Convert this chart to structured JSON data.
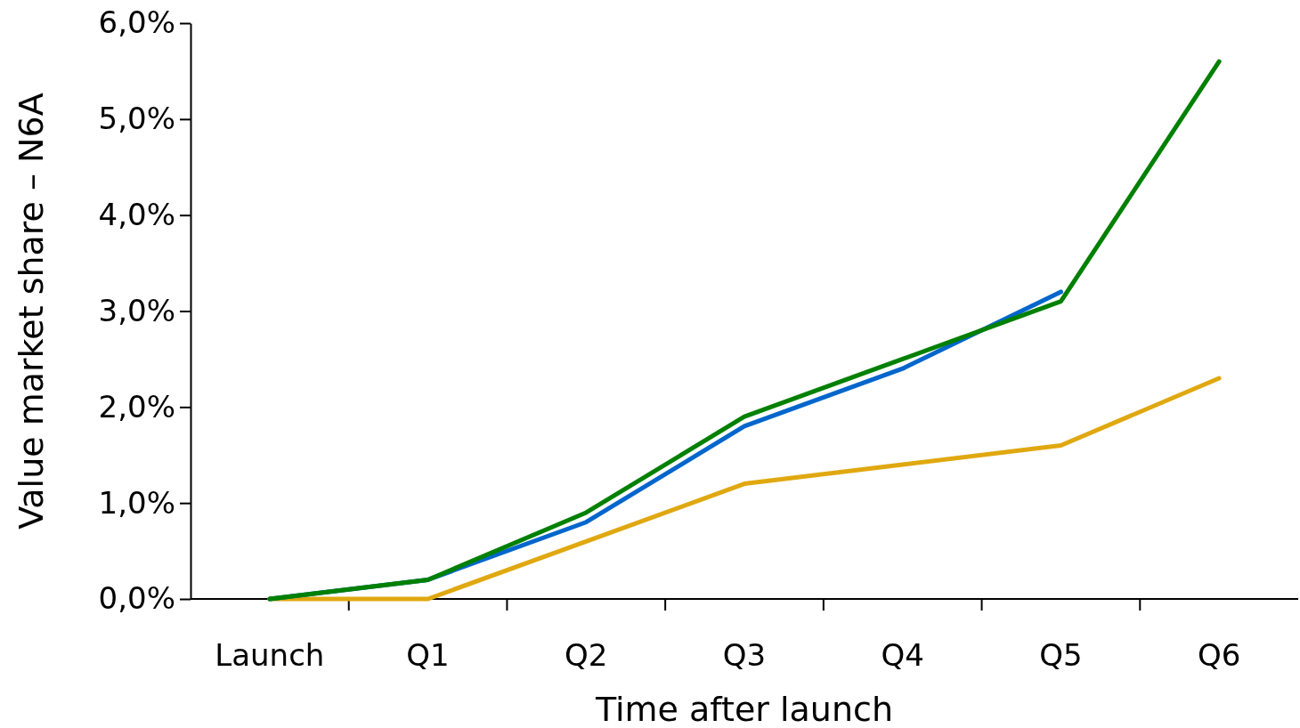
{
  "chart_data": {
    "type": "line",
    "xlabel": "Time after launch",
    "ylabel": "Value market share – N6A",
    "categories": [
      "Launch",
      "Q1",
      "Q2",
      "Q3",
      "Q4",
      "Q5",
      "Q6"
    ],
    "series": [
      {
        "color": "#e0a810",
        "values": [
          0,
          0,
          0.6,
          1.2,
          1.4,
          1.6,
          2.3
        ]
      },
      {
        "color": "#0066cc",
        "values": [
          0,
          0.2,
          0.8,
          1.8,
          2.4,
          3.2,
          null
        ]
      },
      {
        "color": "#008000",
        "values": [
          0,
          0.2,
          0.9,
          1.9,
          2.5,
          3.1,
          5.6
        ]
      }
    ],
    "ylim": [
      0,
      6
    ],
    "yticks": [
      {
        "value": 0,
        "label": "0,0%"
      },
      {
        "value": 1,
        "label": "1,0%"
      },
      {
        "value": 2,
        "label": "2,0%"
      },
      {
        "value": 3,
        "label": "3,0%"
      },
      {
        "value": 4,
        "label": "4,0%"
      },
      {
        "value": 5,
        "label": "5,0%"
      },
      {
        "value": 6,
        "label": "6,0%"
      }
    ],
    "marker": "none",
    "line_style": "solid"
  }
}
